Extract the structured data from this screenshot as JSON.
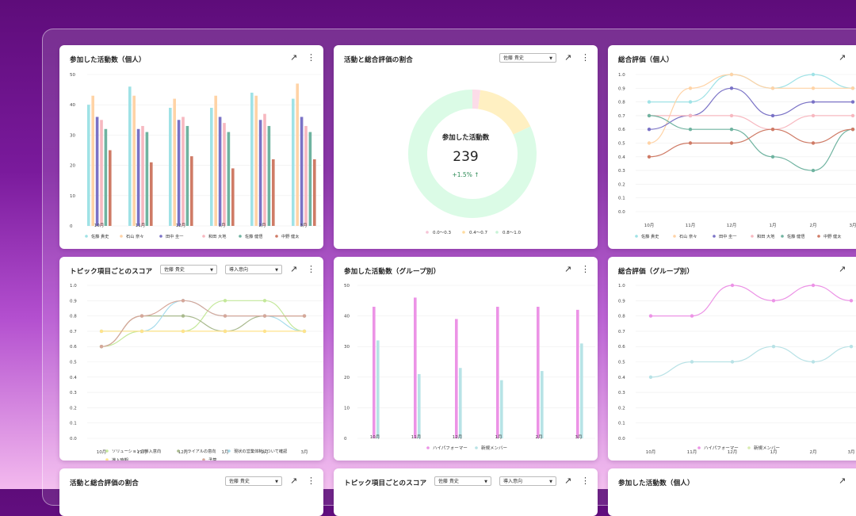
{
  "colors": {
    "c1": "#9fe2e6",
    "c2": "#ffd3a6",
    "c3": "#7a72c6",
    "c4": "#f7b8c0",
    "c5": "#6fb3a0",
    "c6": "#cf7b66",
    "pink": "#ec93e6",
    "teal": "#b7e3e6",
    "ring": "#dbfbe6",
    "ringYellow": "#fff0c2",
    "ringPink": "#fcdce8"
  },
  "months": [
    "10月",
    "11月",
    "12月",
    "1月",
    "2月",
    "3月"
  ],
  "people": [
    "佐藤 貴史",
    "石山 奈々",
    "田中 圭一",
    "和田 大地",
    "佐藤 健悟",
    "中野 健太"
  ],
  "c1": {
    "title": "参加した活動数（個人）",
    "expand_icon": "↗",
    "more_icon": "⋮",
    "chart_data": {
      "type": "bar",
      "categories": [
        "10月",
        "11月",
        "12月",
        "1月",
        "2月",
        "3月"
      ],
      "ylim": [
        0,
        50
      ],
      "ticks": [
        "50",
        "40",
        "30",
        "20",
        "10",
        "0"
      ],
      "series": [
        {
          "name": "佐藤 貴史",
          "values": [
            40,
            46,
            39,
            39,
            44,
            42
          ]
        },
        {
          "name": "石山 奈々",
          "values": [
            43,
            43,
            42,
            43,
            43,
            47
          ]
        },
        {
          "name": "田中 圭一",
          "values": [
            36,
            32,
            35,
            36,
            35,
            36
          ]
        },
        {
          "name": "和田 大地",
          "values": [
            35,
            33,
            36,
            34,
            37,
            33
          ]
        },
        {
          "name": "佐藤 健悟",
          "values": [
            32,
            31,
            33,
            31,
            33,
            31
          ]
        },
        {
          "name": "中野 健太",
          "values": [
            25,
            21,
            23,
            19,
            22,
            22
          ]
        }
      ]
    }
  },
  "c2": {
    "title": "活動と総合評価の割合",
    "dropdown": "佐藤 貴史",
    "center_label": "参加した活動数",
    "center_value": "239",
    "change": "+1.5% ↑",
    "chart_data": {
      "type": "pie",
      "labels": [
        "0.0〜0.3",
        "0.4〜0.7",
        "0.8〜1.0"
      ],
      "values": [
        2,
        16,
        82
      ]
    }
  },
  "c3": {
    "title": "総合評価（個人）",
    "chart_data": {
      "type": "line",
      "categories": [
        "10月",
        "11月",
        "12月",
        "1月",
        "2月",
        "3月"
      ],
      "ylim": [
        0,
        1
      ],
      "ticks": [
        "1.0",
        "0.9",
        "0.8",
        "0.7",
        "0.6",
        "0.5",
        "0.4",
        "0.3",
        "0.2",
        "0.1",
        "0.0"
      ],
      "series": [
        {
          "name": "佐藤 貴史",
          "values": [
            0.8,
            0.8,
            1.0,
            0.9,
            1.0,
            0.9
          ]
        },
        {
          "name": "石山 奈々",
          "values": [
            0.5,
            0.9,
            1.0,
            0.9,
            0.9,
            0.9
          ]
        },
        {
          "name": "田中 圭一",
          "values": [
            0.6,
            0.7,
            0.9,
            0.7,
            0.8,
            0.8
          ]
        },
        {
          "name": "和田 大地",
          "values": [
            0.7,
            0.7,
            0.7,
            0.6,
            0.7,
            0.7
          ]
        },
        {
          "name": "佐藤 健悟",
          "values": [
            0.7,
            0.6,
            0.6,
            0.4,
            0.3,
            0.6
          ]
        },
        {
          "name": "中野 健太",
          "values": [
            0.4,
            0.5,
            0.5,
            0.6,
            0.5,
            0.6
          ]
        }
      ]
    }
  },
  "c4": {
    "title": "トピック項目ごとのスコア",
    "dropdown1": "佐藤 貴史",
    "dropdown2": "導入意向",
    "chart_data": {
      "type": "line",
      "categories": [
        "10月",
        "11月",
        "12月",
        "1月",
        "2月",
        "3月"
      ],
      "ylim": [
        0,
        1
      ],
      "ticks": [
        "1.0",
        "0.9",
        "0.8",
        "0.7",
        "0.6",
        "0.5",
        "0.4",
        "0.3",
        "0.2",
        "0.1",
        "0.0"
      ],
      "series": [
        {
          "name": "ソリューションの導入意向",
          "values": [
            0.6,
            0.7,
            0.7,
            0.9,
            0.9,
            0.7
          ]
        },
        {
          "name": "トライアルの意向",
          "values": [
            0.6,
            0.8,
            0.8,
            0.7,
            0.8,
            0.8
          ]
        },
        {
          "name": "現状の営業体制について確認",
          "values": [
            0.7,
            0.7,
            0.9,
            0.8,
            0.8,
            0.7
          ]
        },
        {
          "name": "導入時期",
          "values": [
            0.7,
            0.7,
            0.7,
            0.7,
            0.7,
            0.7
          ]
        },
        {
          "name": "予算",
          "values": [
            0.6,
            0.8,
            0.9,
            0.8,
            0.8,
            0.8
          ]
        }
      ]
    }
  },
  "c5": {
    "title": "参加した活動数（グループ別）",
    "chart_data": {
      "type": "bar",
      "categories": [
        "10月",
        "11月",
        "12月",
        "1月",
        "2月",
        "3月"
      ],
      "ylim": [
        0,
        50
      ],
      "ticks": [
        "50",
        "40",
        "30",
        "20",
        "10",
        "0"
      ],
      "series": [
        {
          "name": "ハイパフォーマー",
          "values": [
            43,
            46,
            39,
            43,
            43,
            42
          ]
        },
        {
          "name": "新規メンバー",
          "values": [
            32,
            21,
            23,
            19,
            22,
            31
          ]
        }
      ]
    }
  },
  "c6": {
    "title": "総合評価（グループ別）",
    "chart_data": {
      "type": "line",
      "categories": [
        "10月",
        "11月",
        "12月",
        "1月",
        "2月",
        "3月"
      ],
      "ylim": [
        0,
        1
      ],
      "ticks": [
        "1.0",
        "0.9",
        "0.8",
        "0.7",
        "0.6",
        "0.5",
        "0.4",
        "0.3",
        "0.2",
        "0.1",
        "0.0"
      ],
      "series": [
        {
          "name": "ハイパフォーマー",
          "values": [
            0.8,
            0.8,
            1.0,
            0.9,
            1.0,
            0.9
          ]
        },
        {
          "name": "新規メンバー",
          "values": [
            0.4,
            0.5,
            0.5,
            0.6,
            0.5,
            0.6
          ]
        }
      ]
    }
  },
  "c7": {
    "title": "活動と総合評価の割合",
    "dropdown": "佐藤 貴史"
  },
  "c8": {
    "title": "トピック項目ごとのスコア",
    "dropdown1": "佐藤 貴史",
    "dropdown2": "導入意向"
  },
  "c9": {
    "title": "参加した活動数（個人）"
  }
}
